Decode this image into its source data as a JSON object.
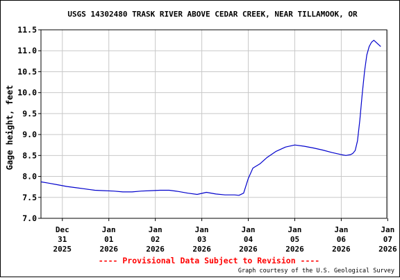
{
  "colors": {
    "line": "#0000cc",
    "grid": "#c8c8c8",
    "provisional": "#ff0000"
  },
  "footer": {
    "provisional": "---- Provisional Data Subject to Revision ----",
    "courtesy": "Graph courtesy of the U.S. Geological Survey"
  },
  "chart_data": {
    "type": "line",
    "title": "USGS 14302480 TRASK RIVER ABOVE CEDAR CREEK, NEAR TILLAMOOK, OR",
    "ylabel": "Gage height, feet",
    "xlabel": "",
    "ylim": [
      7.0,
      11.5
    ],
    "yticks": [
      7.0,
      7.5,
      8.0,
      8.5,
      9.0,
      9.5,
      10.0,
      10.5,
      11.0,
      11.5
    ],
    "ytick_labels": [
      "7.0",
      "7.5",
      "8.0",
      "8.5",
      "9.0",
      "9.5",
      "10.0",
      "10.5",
      "11.0",
      "11.5"
    ],
    "x_unit": "days since 2025-12-31 00:00",
    "xlim": [
      -0.46,
      6.98
    ],
    "xtick_positions": [
      0,
      1,
      2,
      3,
      4,
      5,
      6,
      7
    ],
    "xtick_labels": [
      [
        "Dec",
        "31",
        "2025"
      ],
      [
        "Jan",
        "01",
        "2026"
      ],
      [
        "Jan",
        "02",
        "2026"
      ],
      [
        "Jan",
        "03",
        "2026"
      ],
      [
        "Jan",
        "04",
        "2026"
      ],
      [
        "Jan",
        "05",
        "2026"
      ],
      [
        "Jan",
        "06",
        "2026"
      ],
      [
        "Jan",
        "07",
        "2026"
      ]
    ],
    "grid": true,
    "series": [
      {
        "name": "",
        "x": [
          -0.46,
          -0.3,
          -0.1,
          0.1,
          0.3,
          0.5,
          0.7,
          0.9,
          1.1,
          1.3,
          1.5,
          1.7,
          1.9,
          2.1,
          2.3,
          2.5,
          2.7,
          2.9,
          3.1,
          3.3,
          3.5,
          3.7,
          3.8,
          3.9,
          4.0,
          4.1,
          4.25,
          4.4,
          4.6,
          4.8,
          5.0,
          5.2,
          5.4,
          5.6,
          5.8,
          6.0,
          6.1,
          6.15,
          6.2,
          6.25,
          6.3,
          6.35,
          6.4,
          6.45,
          6.5,
          6.55,
          6.6,
          6.65,
          6.7,
          6.75,
          6.8,
          6.85
        ],
        "y": [
          7.87,
          7.84,
          7.8,
          7.76,
          7.73,
          7.7,
          7.67,
          7.66,
          7.65,
          7.63,
          7.63,
          7.65,
          7.66,
          7.67,
          7.67,
          7.64,
          7.6,
          7.57,
          7.62,
          7.58,
          7.56,
          7.56,
          7.55,
          7.6,
          7.95,
          8.2,
          8.3,
          8.45,
          8.6,
          8.7,
          8.75,
          8.72,
          8.68,
          8.63,
          8.57,
          8.52,
          8.5,
          8.51,
          8.52,
          8.55,
          8.62,
          8.85,
          9.35,
          9.95,
          10.5,
          10.9,
          11.1,
          11.2,
          11.25,
          11.2,
          11.15,
          11.1
        ]
      }
    ]
  }
}
